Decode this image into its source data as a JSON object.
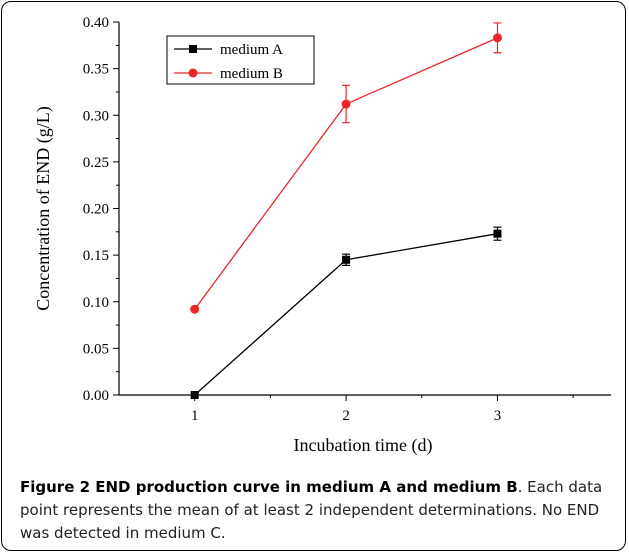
{
  "chart_data": {
    "type": "line",
    "xlabel": "Incubation time (d)",
    "ylabel": "Concentration of END (g/L)",
    "x": [
      1,
      2,
      3
    ],
    "xticks": [
      "1",
      "2",
      "3"
    ],
    "xlim": [
      0.5,
      3.75
    ],
    "ylim": [
      0,
      0.4
    ],
    "yticks": [
      "0.00",
      "0.05",
      "0.10",
      "0.15",
      "0.20",
      "0.25",
      "0.30",
      "0.35",
      "0.40"
    ],
    "legend_position": "top-left",
    "grid": false,
    "series": [
      {
        "name": "medium A",
        "values": [
          0.0,
          0.145,
          0.173
        ],
        "error": [
          0.0,
          0.006,
          0.007
        ],
        "color": "#000000",
        "marker": "square"
      },
      {
        "name": "medium B",
        "values": [
          0.092,
          0.312,
          0.383
        ],
        "error": [
          0.0,
          0.02,
          0.016
        ],
        "color": "#e8262b",
        "marker": "circle"
      }
    ]
  },
  "caption": {
    "title": "Figure 2 END production curve in medium A and medium B",
    "text": ". Each data point represents the mean of at least 2 independent determinations. No END was detected in medium C."
  }
}
